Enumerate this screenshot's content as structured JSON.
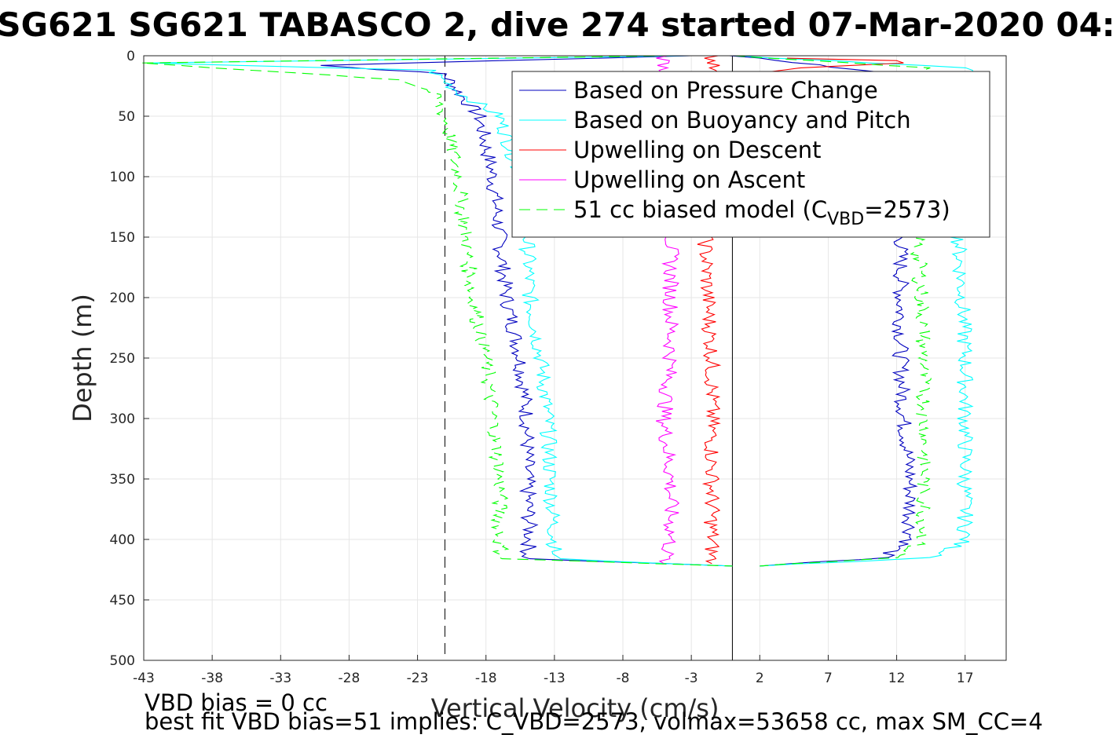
{
  "chart_data": {
    "type": "line",
    "title": "SG621 SG621 TABASCO 2, dive 274 started 07-Mar-2020 04:",
    "xlabel": "Vertical Velocity (cm/s)",
    "ylabel": "Depth (m)",
    "xlim": [
      -43,
      20
    ],
    "ylim": [
      0,
      500
    ],
    "y_reversed": true,
    "xticks": [
      -43,
      -38,
      -33,
      -28,
      -23,
      -18,
      -13,
      -8,
      -3,
      2,
      7,
      12,
      17
    ],
    "yticks": [
      0,
      50,
      100,
      150,
      200,
      250,
      300,
      350,
      400,
      450,
      500
    ],
    "grid": true,
    "legend_position": "top-right",
    "reference_lines": [
      {
        "x": -21,
        "style": "dashed",
        "color": "#000000"
      },
      {
        "x": 0,
        "style": "solid",
        "color": "#000000"
      }
    ],
    "series": [
      {
        "name": "Based on Pressure Change",
        "color": "#0000bf",
        "dash": "",
        "descent": [
          [
            -3,
            0
          ],
          [
            -30,
            8
          ],
          [
            -21,
            15
          ],
          [
            -20,
            30
          ],
          [
            -18.5,
            50
          ],
          [
            -17.5,
            100
          ],
          [
            -17,
            150
          ],
          [
            -16.5,
            200
          ],
          [
            -15.5,
            250
          ],
          [
            -15,
            300
          ],
          [
            -15,
            350
          ],
          [
            -14.8,
            400
          ],
          [
            -15,
            416
          ],
          [
            0,
            422
          ]
        ],
        "ascent": [
          [
            0,
            0
          ],
          [
            12,
            15
          ],
          [
            12.5,
            50
          ],
          [
            12.5,
            100
          ],
          [
            12.3,
            150
          ],
          [
            12.3,
            200
          ],
          [
            12.3,
            250
          ],
          [
            12.5,
            300
          ],
          [
            13,
            350
          ],
          [
            13,
            400
          ],
          [
            11,
            415
          ],
          [
            2,
            422
          ]
        ]
      },
      {
        "name": "Based on Buoyancy and Pitch",
        "color": "#00ffff",
        "dash": "",
        "descent": [
          [
            -3,
            0
          ],
          [
            -43,
            6
          ],
          [
            -22,
            12
          ],
          [
            -20,
            30
          ],
          [
            -17,
            50
          ],
          [
            -15.5,
            100
          ],
          [
            -15,
            150
          ],
          [
            -14.8,
            200
          ],
          [
            -14,
            250
          ],
          [
            -13.5,
            300
          ],
          [
            -13.3,
            350
          ],
          [
            -13,
            400
          ],
          [
            -13,
            416
          ],
          [
            0,
            422
          ]
        ],
        "ascent": [
          [
            0,
            0
          ],
          [
            17.5,
            10
          ],
          [
            16.5,
            50
          ],
          [
            16.5,
            100
          ],
          [
            16.5,
            150
          ],
          [
            16.8,
            200
          ],
          [
            17,
            250
          ],
          [
            17,
            300
          ],
          [
            17,
            350
          ],
          [
            17,
            400
          ],
          [
            15,
            415
          ],
          [
            2,
            422
          ]
        ]
      },
      {
        "name": "Upwelling on Descent",
        "color": "#ff0000",
        "dash": "",
        "descent": [
          [
            -1.5,
            0
          ],
          [
            -1.5,
            50
          ],
          [
            -1.5,
            100
          ],
          [
            -2,
            150
          ],
          [
            -1.8,
            200
          ],
          [
            -1.5,
            250
          ],
          [
            -1.5,
            300
          ],
          [
            -1.5,
            350
          ],
          [
            -1.5,
            400
          ],
          [
            -1.5,
            420
          ]
        ],
        "ascent": [
          [
            4,
            2
          ],
          [
            12,
            4
          ],
          [
            12.5,
            6
          ],
          [
            5,
            10
          ],
          [
            1.5,
            15
          ]
        ]
      },
      {
        "name": "Upwelling on Ascent",
        "color": "#ff00ff",
        "dash": "",
        "descent": [
          [
            -5,
            0
          ],
          [
            -4.5,
            50
          ],
          [
            -4.5,
            100
          ],
          [
            -4.5,
            150
          ],
          [
            -4.5,
            200
          ],
          [
            -4.5,
            250
          ],
          [
            -5,
            300
          ],
          [
            -4.5,
            350
          ],
          [
            -4.5,
            400
          ],
          [
            -5,
            420
          ]
        ],
        "ascent": []
      },
      {
        "name": "51 cc biased model (C_VBD=2573)",
        "color": "#00ff00",
        "dash": "14,8",
        "descent": [
          [
            -5,
            0
          ],
          [
            -43,
            6
          ],
          [
            -24,
            20
          ],
          [
            -22,
            30
          ],
          [
            -21,
            50
          ],
          [
            -20,
            100
          ],
          [
            -19.5,
            150
          ],
          [
            -19,
            200
          ],
          [
            -18,
            250
          ],
          [
            -17.5,
            300
          ],
          [
            -17,
            350
          ],
          [
            -17,
            400
          ],
          [
            -16.8,
            416
          ],
          [
            0,
            422
          ]
        ],
        "ascent": [
          [
            0,
            0
          ],
          [
            14,
            10
          ],
          [
            13.5,
            50
          ],
          [
            13.5,
            100
          ],
          [
            13.5,
            150
          ],
          [
            13.8,
            200
          ],
          [
            14,
            250
          ],
          [
            14,
            300
          ],
          [
            14,
            350
          ],
          [
            14,
            400
          ],
          [
            12,
            415
          ],
          [
            2,
            422
          ]
        ]
      }
    ],
    "legend_entries": [
      "Based on Pressure Change",
      "Based on Buoyancy and Pitch",
      "Upwelling on Descent",
      "Upwelling on Ascent"
    ],
    "legend_last": {
      "prefix": "51 cc biased model (C",
      "sub": "VBD",
      "suffix": "=2573)"
    }
  },
  "notes": {
    "line1": "VBD bias = 0 cc",
    "line2": "best fit VBD bias=51 implies: C_VBD=2573, volmax=53658 cc, max SM_CC=4"
  }
}
